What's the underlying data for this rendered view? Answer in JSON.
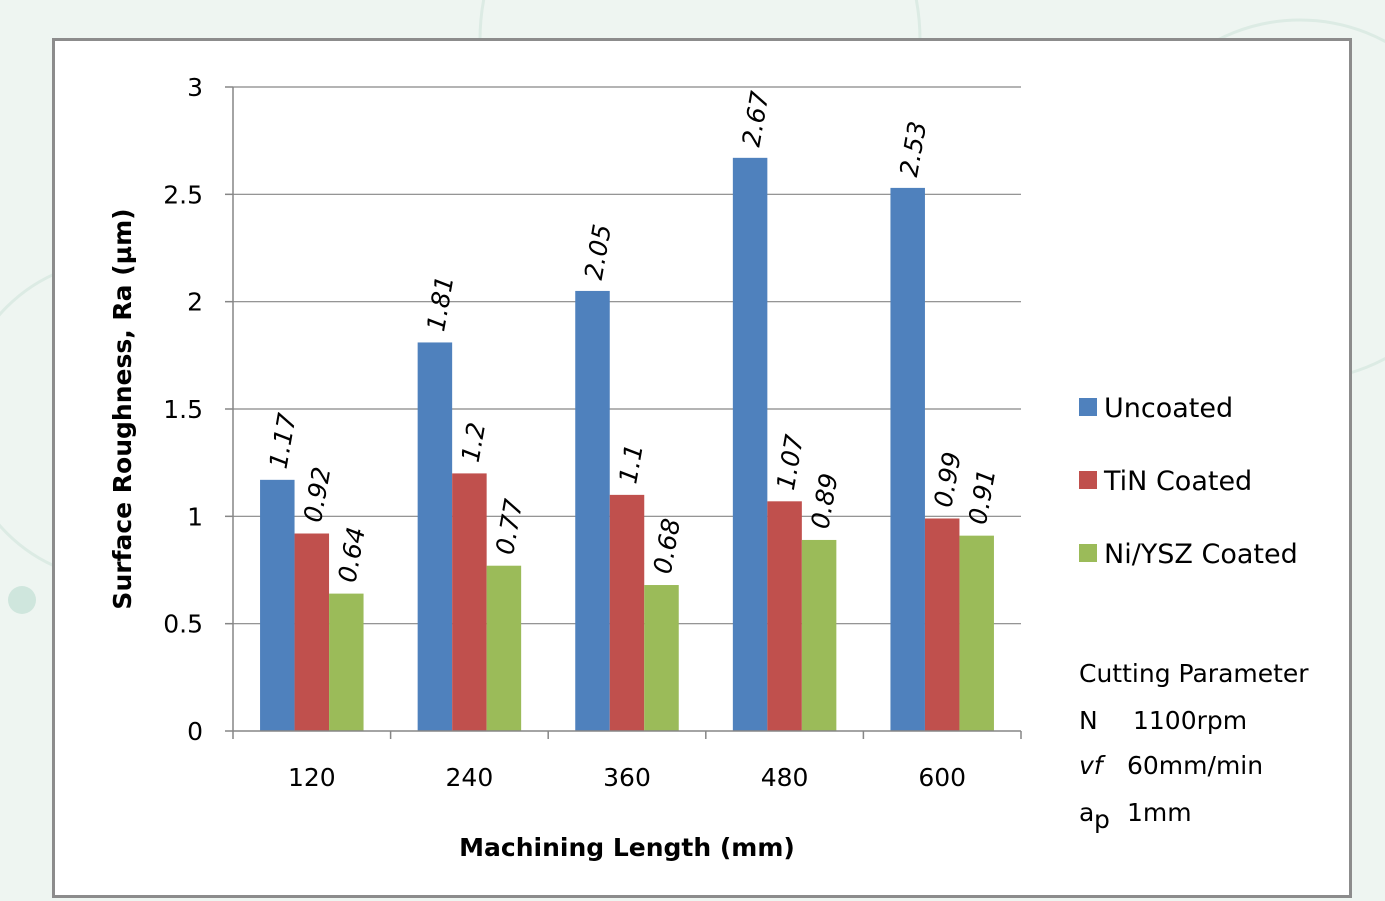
{
  "chart_data": {
    "type": "bar",
    "title": "",
    "xlabel": "Machining Length (mm)",
    "ylabel": "Surface Roughness, Ra (µm)",
    "categories": [
      "120",
      "240",
      "360",
      "480",
      "600"
    ],
    "ylim": [
      0,
      3
    ],
    "yticks": [
      0,
      0.5,
      1,
      1.5,
      2,
      2.5,
      3
    ],
    "grid": "horizontal",
    "legend_position": "right",
    "series": [
      {
        "name": "Uncoated",
        "color": "#4f81bd",
        "values": [
          1.17,
          1.81,
          2.05,
          2.67,
          2.53
        ],
        "labels": [
          "1.17",
          "1.81",
          "2.05",
          "2.67",
          "2.53"
        ]
      },
      {
        "name": "TiN Coated",
        "color": "#c0504d",
        "values": [
          0.92,
          1.2,
          1.1,
          1.07,
          0.99
        ],
        "labels": [
          "0.92",
          "1.2",
          "1.1",
          "1.07",
          "0.99"
        ]
      },
      {
        "name": "Ni/YSZ Coated",
        "color": "#9bbb59",
        "values": [
          0.64,
          0.77,
          0.68,
          0.89,
          0.91
        ],
        "labels": [
          "0.64",
          "0.77",
          "0.68",
          "0.89",
          "0.91"
        ]
      }
    ]
  },
  "parameters": {
    "title": "Cutting Parameter",
    "rows": [
      {
        "symbol": "N",
        "value": "1100rpm"
      },
      {
        "symbol": "vf",
        "value": "60mm/min"
      },
      {
        "symbol": "a",
        "subscript": "p",
        "value": "1mm"
      }
    ]
  }
}
